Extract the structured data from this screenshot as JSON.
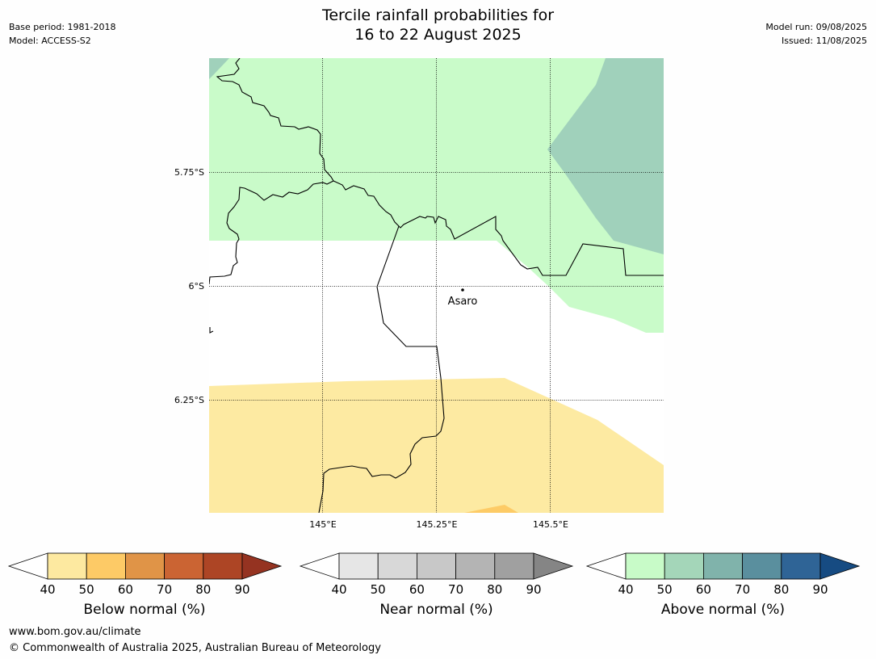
{
  "header": {
    "base_period": "Base period: 1981-2018",
    "model": "Model: ACCESS-S2",
    "title_line1": "Tercile rainfall probabilities for",
    "title_line2": "16 to 22 August 2025",
    "model_run": "Model run: 09/08/2025",
    "issued": "Issued: 11/08/2025"
  },
  "map": {
    "lat_labels": [
      "5.75°S",
      "6°S",
      "6.25°S"
    ],
    "lon_labels": [
      "145°E",
      "145.25°E",
      "145.5°E"
    ],
    "place": "Asaro",
    "colors": {
      "above_40_50": "#c9fbc9",
      "above_50_60": "#a0d1bb",
      "below_40_50": "#fdeaa2",
      "below_50_60": "#fdcb66"
    }
  },
  "colorbars": [
    {
      "title": "Below normal (%)",
      "ticks": [
        "40",
        "50",
        "60",
        "70",
        "80",
        "90"
      ],
      "colors": [
        "#ffffff",
        "#fde9a0",
        "#fdca66",
        "#e09447",
        "#cb6433",
        "#ad4525",
        "#953321"
      ]
    },
    {
      "title": "Near normal (%)",
      "ticks": [
        "40",
        "50",
        "60",
        "70",
        "80",
        "90"
      ],
      "colors": [
        "#ffffff",
        "#e6e6e6",
        "#d8d8d8",
        "#c8c8c8",
        "#b4b4b4",
        "#a0a0a0",
        "#858585"
      ]
    },
    {
      "title": "Above normal (%)",
      "ticks": [
        "40",
        "50",
        "60",
        "70",
        "80",
        "90"
      ],
      "colors": [
        "#ffffff",
        "#c8fbc8",
        "#a4d6b9",
        "#80b3ab",
        "#5a8f9e",
        "#2f6496",
        "#164b82"
      ]
    }
  ],
  "footer": {
    "url": "www.bom.gov.au/climate",
    "copyright": "© Commonwealth of Australia 2025, Australian Bureau of Meteorology"
  }
}
